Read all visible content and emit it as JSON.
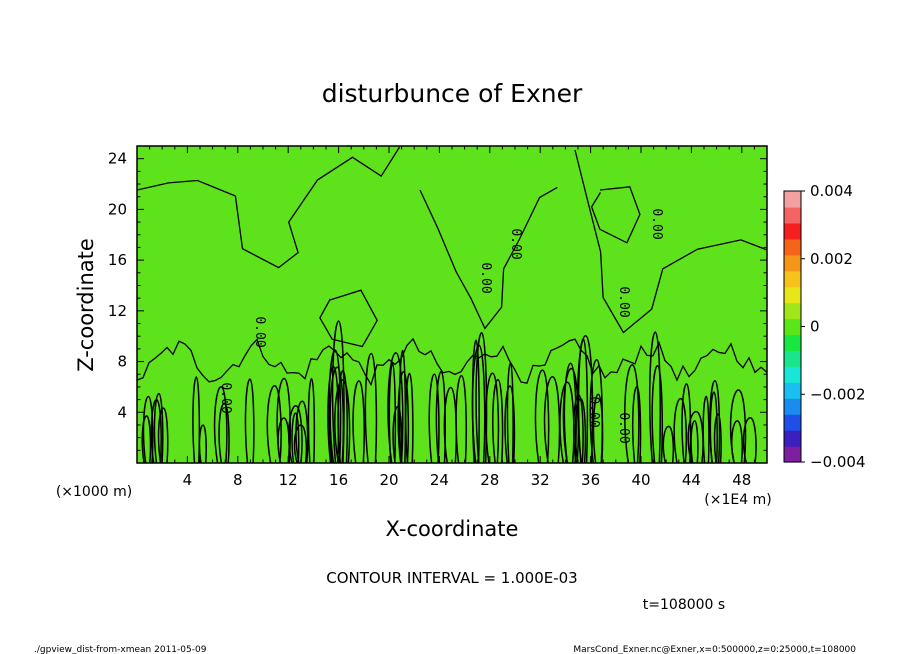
{
  "chart_data": {
    "type": "heatmap",
    "title": "disturbunce of Exner",
    "xlabel": "X-coordinate",
    "ylabel": "Z-coordinate",
    "x_unit_label": "(×1E4 m)",
    "y_unit_label": "(×1000 m)",
    "xlim": [
      0,
      50
    ],
    "ylim": [
      0,
      25
    ],
    "x_ticks": [
      "4",
      "8",
      "12",
      "16",
      "20",
      "24",
      "28",
      "32",
      "36",
      "40",
      "44",
      "48"
    ],
    "y_ticks": [
      "4",
      "8",
      "12",
      "16",
      "20",
      "24"
    ],
    "contour_interval_text": "CONTOUR INTERVAL = 1.000E-03",
    "contour_labels": [
      "0.00",
      "0.00",
      "0.00",
      "0.00",
      "0.00",
      "0.00",
      "0.00",
      "0.00"
    ],
    "time_text": "t=108000 s",
    "field_value": 0,
    "colorbar": {
      "range": [
        -0.004,
        0.004
      ],
      "tick_labels": [
        "0.004",
        "0.002",
        "0",
        "−0.002",
        "−0.004"
      ],
      "colors": [
        "#7d1fa0",
        "#3b1fbf",
        "#1e4fe6",
        "#1a8cf0",
        "#19bff0",
        "#19e6d6",
        "#19e68c",
        "#19e640",
        "#5ae619",
        "#a0e619",
        "#e6e619",
        "#f5c31a",
        "#f59619",
        "#f56419",
        "#f51f1f",
        "#f56464",
        "#f5a0a0"
      ]
    },
    "footer_left": "./gpview_dist-from-xmean  2011-05-09",
    "footer_right": "MarsCond_Exner.nc@Exner,x=0:500000,z=0:25000,t=108000"
  }
}
